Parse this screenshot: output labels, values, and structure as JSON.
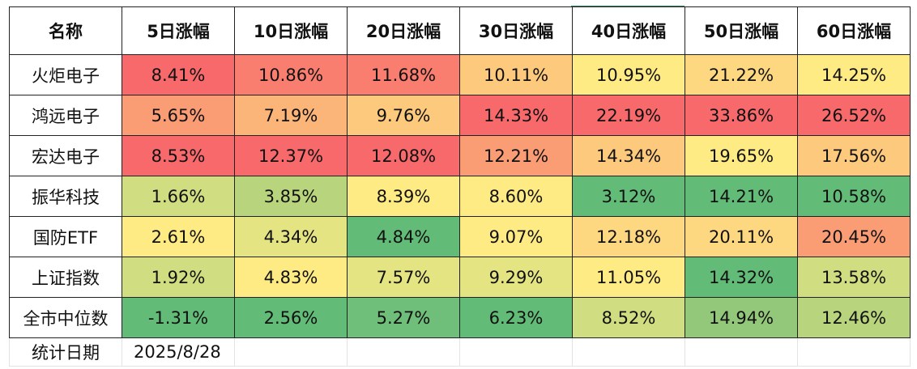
{
  "table": {
    "headers": [
      "名称",
      "5日涨幅",
      "10日涨幅",
      "20日涨幅",
      "30日涨幅",
      "40日涨幅",
      "50日涨幅",
      "60日涨幅"
    ],
    "rows": [
      {
        "name": "火炬电子",
        "values": [
          "8.41%",
          "10.86%",
          "11.68%",
          "10.11%",
          "10.95%",
          "21.22%",
          "14.25%"
        ]
      },
      {
        "name": "鸿远电子",
        "values": [
          "5.65%",
          "7.19%",
          "9.76%",
          "14.33%",
          "22.19%",
          "33.86%",
          "26.52%"
        ]
      },
      {
        "name": "宏达电子",
        "values": [
          "8.53%",
          "12.37%",
          "12.08%",
          "12.21%",
          "14.34%",
          "19.65%",
          "17.56%"
        ]
      },
      {
        "name": "振华科技",
        "values": [
          "1.66%",
          "3.85%",
          "8.39%",
          "8.60%",
          "3.12%",
          "14.21%",
          "10.58%"
        ]
      },
      {
        "name": "国防ETF",
        "values": [
          "2.61%",
          "4.34%",
          "4.84%",
          "9.07%",
          "12.18%",
          "20.11%",
          "20.45%"
        ]
      },
      {
        "name": "上证指数",
        "values": [
          "1.92%",
          "4.83%",
          "7.57%",
          "9.29%",
          "11.05%",
          "14.32%",
          "13.58%"
        ]
      },
      {
        "name": "全市中位数",
        "values": [
          "-1.31%",
          "2.56%",
          "5.27%",
          "6.23%",
          "8.52%",
          "14.94%",
          "12.46%"
        ]
      }
    ],
    "footer": {
      "label": "统计日期",
      "date": "2025/8/28"
    }
  },
  "colors": {
    "heat_red": "#f8696b",
    "heat_yellow": "#ffeb84",
    "heat_green": "#62bb77"
  }
}
